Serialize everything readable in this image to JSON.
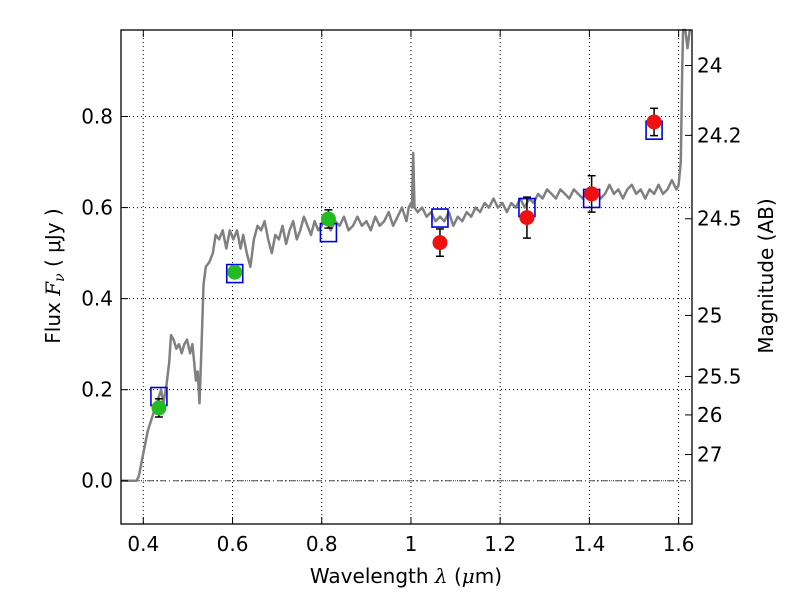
{
  "chart_data": {
    "type": "scatter",
    "xlabel": {
      "prefix": "Wavelength  ",
      "symbol": "λ",
      "open": " (",
      "unit_mu": "μ",
      "unit_rest": "m)"
    },
    "ylabel": {
      "prefix": "Flux  ",
      "symbol": "F",
      "sub": "ν",
      "unit": "  ( μJy )"
    },
    "y2label": "Magnitude (AB)",
    "xlim": [
      0.35,
      1.63
    ],
    "ylim": [
      -0.095,
      0.99
    ],
    "grid": true,
    "x_ticks": [
      0.4,
      0.6,
      0.8,
      1.0,
      1.2,
      1.4,
      1.6
    ],
    "x_tick_labels": [
      "0.4",
      "0.6",
      "0.8",
      "1",
      "1.2",
      "1.4",
      "1.6"
    ],
    "y_ticks": [
      0.0,
      0.2,
      0.4,
      0.6,
      0.8
    ],
    "y_tick_labels": [
      "0.0",
      "0.2",
      "0.4",
      "0.6",
      "0.8"
    ],
    "mag_ticks": [
      {
        "label": "24",
        "mag": 24.0
      },
      {
        "label": "24.2",
        "mag": 24.2
      },
      {
        "label": "24.5",
        "mag": 24.5
      },
      {
        "label": "25",
        "mag": 25.0
      },
      {
        "label": "25.5",
        "mag": 25.5
      },
      {
        "label": "26",
        "mag": 26.0
      },
      {
        "label": "27",
        "mag": 27.0
      }
    ],
    "colors": {
      "model": "#808080",
      "green": "#22bb22",
      "red": "#ee1111",
      "box": "#0000dd",
      "err": "#000000",
      "zero": "#555555"
    },
    "series": [
      {
        "name": "model spectrum",
        "kind": "line",
        "points": [
          [
            0.35,
            0.0
          ],
          [
            0.385,
            0.0
          ],
          [
            0.39,
            0.01
          ],
          [
            0.4,
            0.06
          ],
          [
            0.41,
            0.11
          ],
          [
            0.42,
            0.14
          ],
          [
            0.43,
            0.17
          ],
          [
            0.44,
            0.2
          ],
          [
            0.445,
            0.17
          ],
          [
            0.452,
            0.21
          ],
          [
            0.458,
            0.26
          ],
          [
            0.462,
            0.32
          ],
          [
            0.468,
            0.31
          ],
          [
            0.474,
            0.29
          ],
          [
            0.48,
            0.3
          ],
          [
            0.486,
            0.28
          ],
          [
            0.492,
            0.3
          ],
          [
            0.498,
            0.31
          ],
          [
            0.505,
            0.28
          ],
          [
            0.51,
            0.3
          ],
          [
            0.514,
            0.26
          ],
          [
            0.518,
            0.22
          ],
          [
            0.522,
            0.24
          ],
          [
            0.526,
            0.17
          ],
          [
            0.53,
            0.28
          ],
          [
            0.535,
            0.43
          ],
          [
            0.54,
            0.47
          ],
          [
            0.548,
            0.48
          ],
          [
            0.556,
            0.5
          ],
          [
            0.562,
            0.54
          ],
          [
            0.57,
            0.53
          ],
          [
            0.578,
            0.55
          ],
          [
            0.586,
            0.51
          ],
          [
            0.594,
            0.55
          ],
          [
            0.602,
            0.53
          ],
          [
            0.61,
            0.55
          ],
          [
            0.618,
            0.51
          ],
          [
            0.624,
            0.54
          ],
          [
            0.632,
            0.5
          ],
          [
            0.64,
            0.47
          ],
          [
            0.648,
            0.53
          ],
          [
            0.656,
            0.56
          ],
          [
            0.664,
            0.55
          ],
          [
            0.672,
            0.57
          ],
          [
            0.68,
            0.53
          ],
          [
            0.688,
            0.5
          ],
          [
            0.696,
            0.54
          ],
          [
            0.704,
            0.53
          ],
          [
            0.712,
            0.56
          ],
          [
            0.72,
            0.52
          ],
          [
            0.728,
            0.55
          ],
          [
            0.736,
            0.57
          ],
          [
            0.744,
            0.53
          ],
          [
            0.752,
            0.55
          ],
          [
            0.76,
            0.58
          ],
          [
            0.768,
            0.56
          ],
          [
            0.776,
            0.54
          ],
          [
            0.784,
            0.57
          ],
          [
            0.792,
            0.55
          ],
          [
            0.8,
            0.56
          ],
          [
            0.81,
            0.58
          ],
          [
            0.82,
            0.55
          ],
          [
            0.83,
            0.57
          ],
          [
            0.84,
            0.56
          ],
          [
            0.85,
            0.58
          ],
          [
            0.86,
            0.55
          ],
          [
            0.87,
            0.56
          ],
          [
            0.88,
            0.58
          ],
          [
            0.89,
            0.56
          ],
          [
            0.9,
            0.57
          ],
          [
            0.91,
            0.55
          ],
          [
            0.92,
            0.58
          ],
          [
            0.93,
            0.56
          ],
          [
            0.94,
            0.57
          ],
          [
            0.95,
            0.59
          ],
          [
            0.96,
            0.56
          ],
          [
            0.97,
            0.58
          ],
          [
            0.98,
            0.6
          ],
          [
            0.99,
            0.57
          ],
          [
            0.995,
            0.6
          ],
          [
            1.0,
            0.61
          ],
          [
            1.002,
            0.6
          ],
          [
            1.005,
            0.72
          ],
          [
            1.008,
            0.6
          ],
          [
            1.015,
            0.59
          ],
          [
            1.025,
            0.6
          ],
          [
            1.035,
            0.58
          ],
          [
            1.045,
            0.59
          ],
          [
            1.055,
            0.57
          ],
          [
            1.065,
            0.58
          ],
          [
            1.075,
            0.57
          ],
          [
            1.085,
            0.59
          ],
          [
            1.095,
            0.56
          ],
          [
            1.105,
            0.58
          ],
          [
            1.115,
            0.57
          ],
          [
            1.125,
            0.59
          ],
          [
            1.135,
            0.58
          ],
          [
            1.145,
            0.6
          ],
          [
            1.155,
            0.59
          ],
          [
            1.165,
            0.61
          ],
          [
            1.175,
            0.6
          ],
          [
            1.185,
            0.62
          ],
          [
            1.195,
            0.6
          ],
          [
            1.205,
            0.61
          ],
          [
            1.215,
            0.59
          ],
          [
            1.225,
            0.61
          ],
          [
            1.235,
            0.6
          ],
          [
            1.245,
            0.62
          ],
          [
            1.255,
            0.6
          ],
          [
            1.265,
            0.62
          ],
          [
            1.275,
            0.61
          ],
          [
            1.285,
            0.63
          ],
          [
            1.295,
            0.62
          ],
          [
            1.305,
            0.64
          ],
          [
            1.315,
            0.63
          ],
          [
            1.325,
            0.62
          ],
          [
            1.335,
            0.64
          ],
          [
            1.345,
            0.63
          ],
          [
            1.355,
            0.62
          ],
          [
            1.365,
            0.64
          ],
          [
            1.375,
            0.63
          ],
          [
            1.385,
            0.62
          ],
          [
            1.395,
            0.64
          ],
          [
            1.405,
            0.63
          ],
          [
            1.415,
            0.64
          ],
          [
            1.425,
            0.62
          ],
          [
            1.435,
            0.63
          ],
          [
            1.445,
            0.65
          ],
          [
            1.455,
            0.63
          ],
          [
            1.465,
            0.64
          ],
          [
            1.475,
            0.62
          ],
          [
            1.485,
            0.64
          ],
          [
            1.495,
            0.65
          ],
          [
            1.505,
            0.63
          ],
          [
            1.515,
            0.64
          ],
          [
            1.525,
            0.62
          ],
          [
            1.535,
            0.64
          ],
          [
            1.545,
            0.63
          ],
          [
            1.555,
            0.65
          ],
          [
            1.565,
            0.63
          ],
          [
            1.575,
            0.64
          ],
          [
            1.585,
            0.66
          ],
          [
            1.595,
            0.64
          ],
          [
            1.6,
            0.65
          ],
          [
            1.605,
            0.7
          ],
          [
            1.608,
            0.9
          ],
          [
            1.61,
            0.99
          ],
          [
            1.615,
            0.99
          ],
          [
            1.62,
            0.95
          ],
          [
            1.625,
            0.99
          ]
        ]
      },
      {
        "name": "observed (green)",
        "kind": "points",
        "color_key": "green",
        "points": [
          {
            "x": 0.435,
            "y": 0.16,
            "yerr": 0.02
          },
          {
            "x": 0.605,
            "y": 0.458,
            "yerr": 0.01
          },
          {
            "x": 0.815,
            "y": 0.575,
            "yerr": 0.02
          }
        ]
      },
      {
        "name": "observed (red)",
        "kind": "points",
        "color_key": "red",
        "points": [
          {
            "x": 1.065,
            "y": 0.523,
            "yerr": 0.03
          },
          {
            "x": 1.26,
            "y": 0.578,
            "yerr": 0.045
          },
          {
            "x": 1.405,
            "y": 0.63,
            "yerr": 0.04
          },
          {
            "x": 1.545,
            "y": 0.788,
            "yerr": 0.03
          }
        ]
      },
      {
        "name": "model photometry",
        "kind": "boxes",
        "color_key": "box",
        "points": [
          {
            "x": 0.435,
            "y": 0.185
          },
          {
            "x": 0.605,
            "y": 0.455
          },
          {
            "x": 0.815,
            "y": 0.545
          },
          {
            "x": 1.065,
            "y": 0.577
          },
          {
            "x": 1.26,
            "y": 0.6
          },
          {
            "x": 1.405,
            "y": 0.62
          },
          {
            "x": 1.545,
            "y": 0.77
          }
        ]
      }
    ]
  }
}
